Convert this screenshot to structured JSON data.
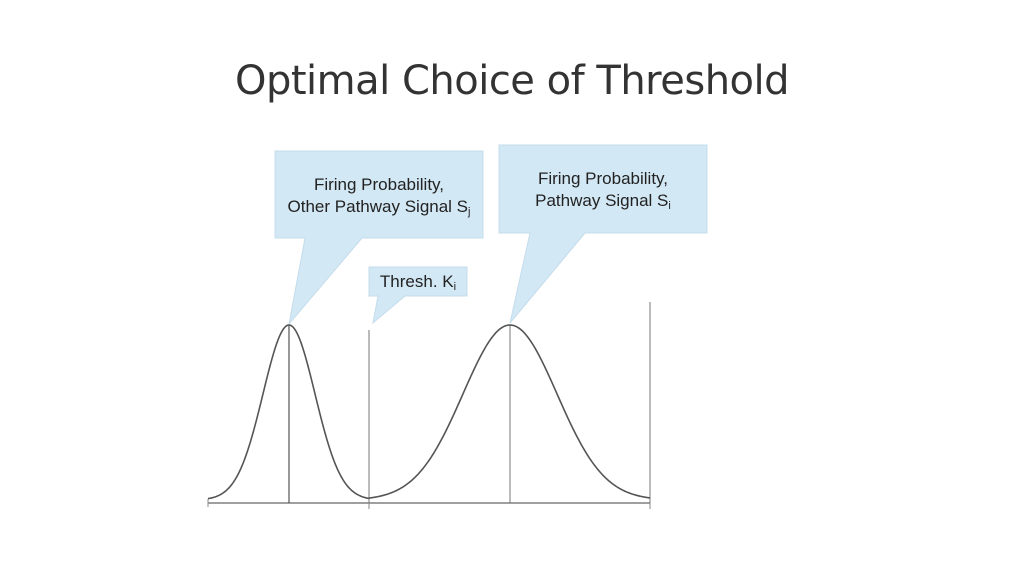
{
  "title": "Optimal Choice of Threshold",
  "callouts": {
    "other_pathway": {
      "line1": "Firing Probability,",
      "line2": "Other Pathway Signal S",
      "subscript": "j"
    },
    "pathway": {
      "line1": "Firing Probability,",
      "line2": "Pathway Signal S",
      "subscript": "i"
    },
    "threshold": {
      "text": "Thresh. K",
      "subscript": "i"
    }
  },
  "colors": {
    "callout_fill": "#d3e8f5",
    "curve": "#555555",
    "axis": "#666666",
    "title": "#333333"
  }
}
